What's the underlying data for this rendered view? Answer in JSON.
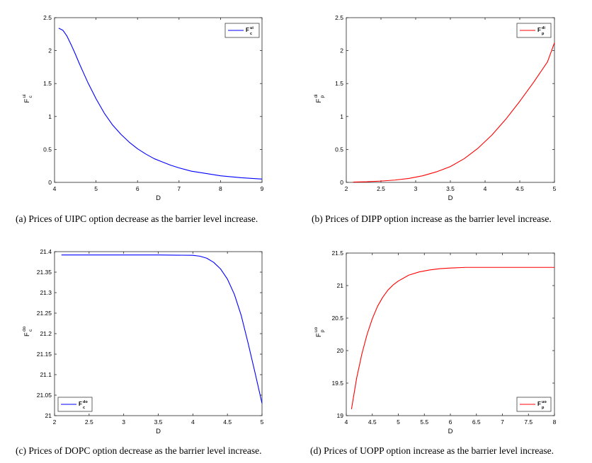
{
  "chart_data": [
    {
      "type": "line",
      "id": "a",
      "caption": "(a)  Prices of UIPC option decrease as the barrier level increase.",
      "xlabel": "D",
      "ylabel_base": "F",
      "ylabel_sup": "ui",
      "ylabel_sub": "c",
      "xlim": [
        4,
        9
      ],
      "ylim": [
        0,
        2.5
      ],
      "xticks": [
        4,
        5,
        6,
        7,
        8,
        9
      ],
      "yticks": [
        0,
        0.5,
        1,
        1.5,
        2,
        2.5
      ],
      "xtick_labels": [
        "4",
        "5",
        "6",
        "7",
        "8",
        "9"
      ],
      "ytick_labels": [
        "0",
        "0.5",
        "1",
        "1.5",
        "2",
        "2.5"
      ],
      "legend": {
        "label_base": "F",
        "label_sup": "ui",
        "label_sub": "c",
        "position": "top-right"
      },
      "series": [
        {
          "name": "F_c^ui",
          "color": "#0000ff",
          "x": [
            4.1,
            4.2,
            4.3,
            4.4,
            4.5,
            4.6,
            4.7,
            4.8,
            5.0,
            5.2,
            5.4,
            5.6,
            5.8,
            6.0,
            6.2,
            6.4,
            6.6,
            6.8,
            7.0,
            7.3,
            7.6,
            8.0,
            8.5,
            9.0
          ],
          "y": [
            2.34,
            2.31,
            2.22,
            2.09,
            1.95,
            1.8,
            1.66,
            1.52,
            1.27,
            1.05,
            0.87,
            0.73,
            0.61,
            0.51,
            0.43,
            0.36,
            0.31,
            0.26,
            0.22,
            0.17,
            0.14,
            0.1,
            0.07,
            0.05
          ]
        }
      ]
    },
    {
      "type": "line",
      "id": "b",
      "caption": "(b)  Prices of DIPP option increase as the barrier level increase.",
      "xlabel": "D",
      "ylabel_base": "F",
      "ylabel_sup": "di",
      "ylabel_sub": "p",
      "xlim": [
        2,
        5
      ],
      "ylim": [
        0,
        2.5
      ],
      "xticks": [
        2,
        2.5,
        3,
        3.5,
        4,
        4.5,
        5
      ],
      "yticks": [
        0,
        0.5,
        1,
        1.5,
        2,
        2.5
      ],
      "xtick_labels": [
        "2",
        "2.5",
        "3",
        "3.5",
        "4",
        "4.5",
        "5"
      ],
      "ytick_labels": [
        "0",
        "0.5",
        "1",
        "1.5",
        "2",
        "2.5"
      ],
      "legend": {
        "label_base": "F",
        "label_sup": "di",
        "label_sub": "p",
        "position": "top-right"
      },
      "series": [
        {
          "name": "F_p^di",
          "color": "#ff0000",
          "x": [
            2.1,
            2.3,
            2.5,
            2.7,
            2.9,
            3.1,
            3.3,
            3.5,
            3.7,
            3.9,
            4.1,
            4.3,
            4.5,
            4.7,
            4.9,
            5.0
          ],
          "y": [
            0.005,
            0.01,
            0.02,
            0.035,
            0.06,
            0.1,
            0.16,
            0.24,
            0.36,
            0.52,
            0.72,
            0.96,
            1.23,
            1.52,
            1.83,
            2.12
          ]
        }
      ]
    },
    {
      "type": "line",
      "id": "c",
      "caption": "(c)  Prices of DOPC option decrease as the barrier level increase.",
      "xlabel": "D",
      "ylabel_base": "F",
      "ylabel_sup": "do",
      "ylabel_sub": "c",
      "xlim": [
        2,
        5
      ],
      "ylim": [
        21,
        21.4
      ],
      "xticks": [
        2,
        2.5,
        3,
        3.5,
        4,
        4.5,
        5
      ],
      "yticks": [
        21,
        21.05,
        21.1,
        21.15,
        21.2,
        21.25,
        21.3,
        21.35,
        21.4
      ],
      "xtick_labels": [
        "2",
        "2.5",
        "3",
        "3.5",
        "4",
        "4.5",
        "5"
      ],
      "ytick_labels": [
        "21",
        "21.05",
        "21.1",
        "21.15",
        "21.2",
        "21.25",
        "21.3",
        "21.35",
        "21.4"
      ],
      "legend": {
        "label_base": "F",
        "label_sup": "do",
        "label_sub": "c",
        "position": "bottom-left"
      },
      "series": [
        {
          "name": "F_c^do",
          "color": "#0000ff",
          "x": [
            2.1,
            3.0,
            3.5,
            4.0,
            4.1,
            4.2,
            4.3,
            4.4,
            4.5,
            4.6,
            4.7,
            4.8,
            4.9,
            5.0
          ],
          "y": [
            21.392,
            21.392,
            21.392,
            21.391,
            21.389,
            21.384,
            21.374,
            21.358,
            21.333,
            21.296,
            21.244,
            21.176,
            21.104,
            21.03
          ]
        }
      ]
    },
    {
      "type": "line",
      "id": "d",
      "caption": "(d)  Prices of UOPP option increase as the barrier level increase.",
      "xlabel": "D",
      "ylabel_base": "F",
      "ylabel_sup": "uo",
      "ylabel_sub": "p",
      "xlim": [
        4,
        8
      ],
      "ylim": [
        19,
        21.5
      ],
      "xticks": [
        4,
        4.5,
        5,
        5.5,
        6,
        6.5,
        7,
        7.5,
        8
      ],
      "yticks": [
        19,
        19.5,
        20,
        20.5,
        21,
        21.5
      ],
      "xtick_labels": [
        "4",
        "4.5",
        "5",
        "5.5",
        "6",
        "6.5",
        "7",
        "7.5",
        "8"
      ],
      "ytick_labels": [
        "19",
        "19.5",
        "20",
        "20.5",
        "21",
        "21.5"
      ],
      "legend": {
        "label_base": "F",
        "label_sup": "uo",
        "label_sub": "p",
        "position": "bottom-right"
      },
      "series": [
        {
          "name": "F_p^uo",
          "color": "#ff0000",
          "x": [
            4.1,
            4.2,
            4.3,
            4.4,
            4.5,
            4.6,
            4.7,
            4.8,
            4.9,
            5.0,
            5.2,
            5.4,
            5.6,
            5.8,
            6.0,
            6.3,
            6.6,
            7.0,
            7.5,
            8.0
          ],
          "y": [
            19.1,
            19.58,
            19.95,
            20.25,
            20.49,
            20.68,
            20.82,
            20.93,
            21.01,
            21.07,
            21.16,
            21.21,
            21.24,
            21.26,
            21.27,
            21.28,
            21.28,
            21.28,
            21.28,
            21.28
          ]
        }
      ]
    }
  ]
}
